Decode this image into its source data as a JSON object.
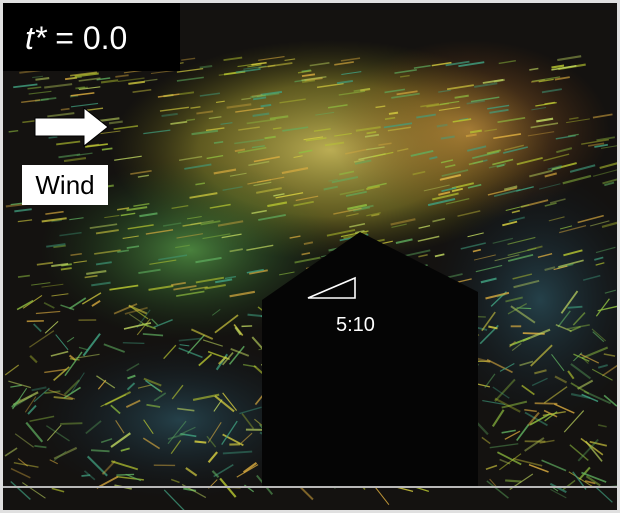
{
  "time_label": {
    "symbol": "t*",
    "text": "= 0.0"
  },
  "wind_label": "Wind",
  "slope_label": "5:10"
}
